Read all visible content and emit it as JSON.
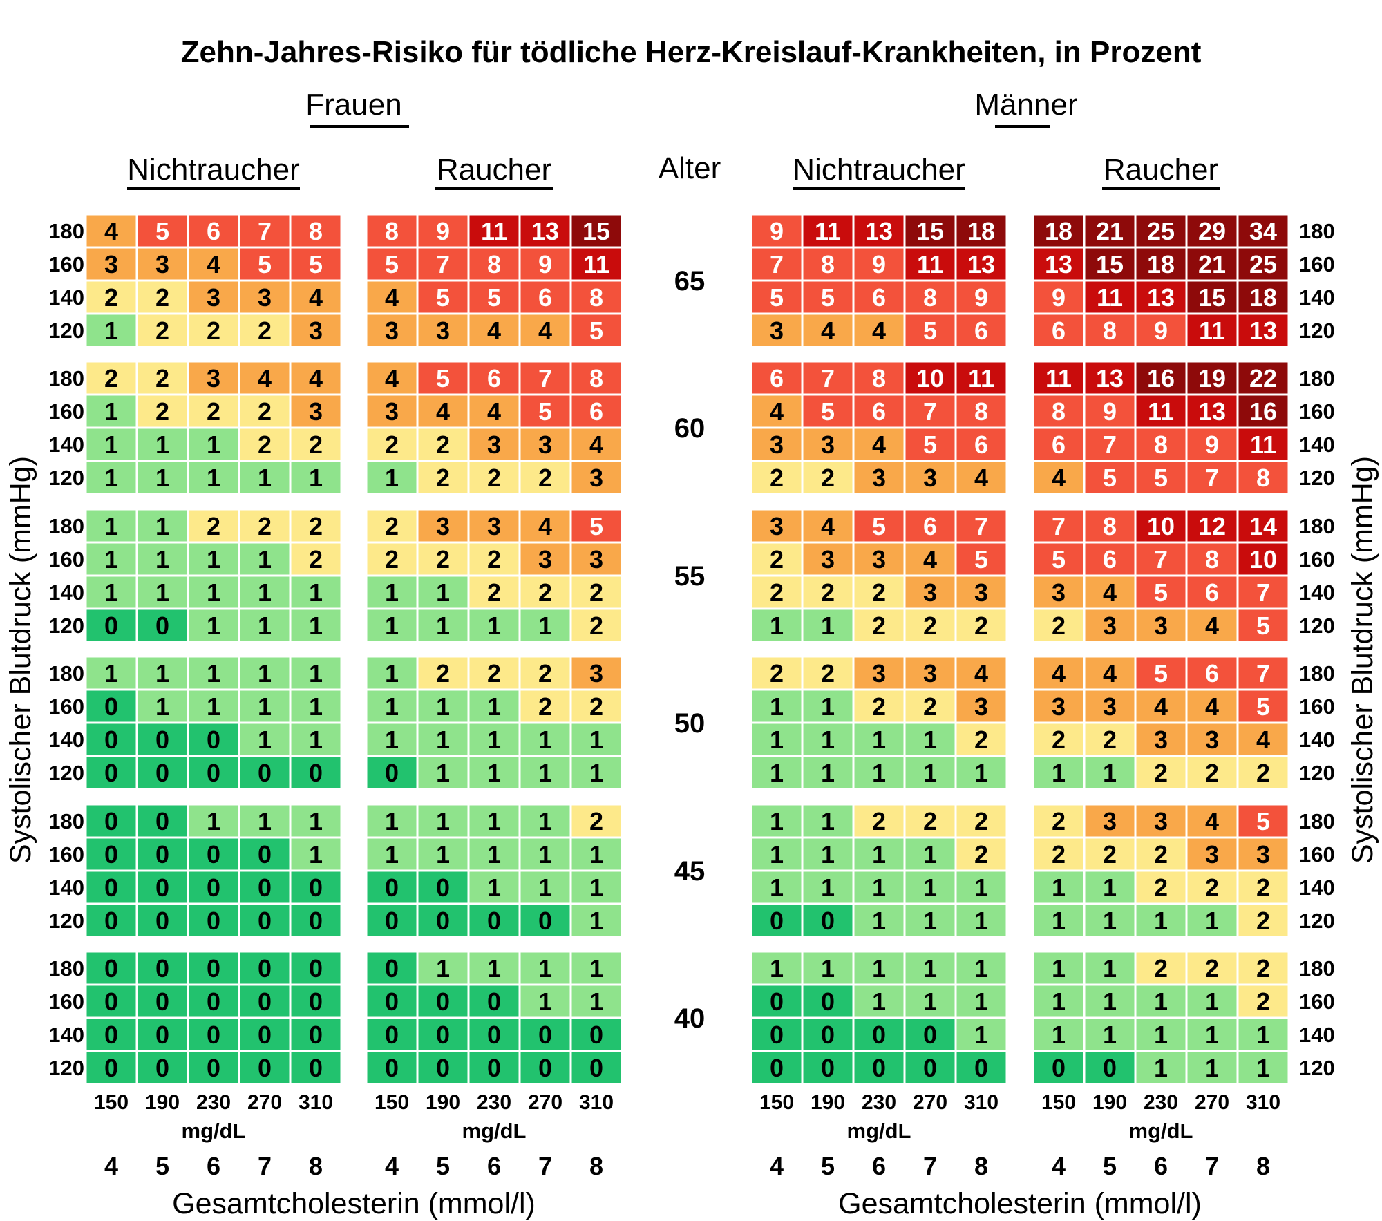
{
  "title": "Zehn-Jahres-Risiko für tödliche Herz-Kreislauf-Krankheiten, in Prozent",
  "colors": {
    "0": "#22c26e",
    "1": "#8fe38c",
    "2": "#fde98a",
    "3": "#f9a84a",
    "4": "#f9a84a",
    "5_9": "#f3523b",
    "10_14": "#c90c0c",
    "15_plus": "#8e0a0a"
  },
  "chart_data": {
    "type": "heatmap",
    "title": "Zehn-Jahres-Risiko für tödliche Herz-Kreislauf-Krankheiten, in Prozent",
    "age_label": "Alter",
    "ages": [
      "65",
      "60",
      "55",
      "50",
      "45",
      "40"
    ],
    "bp_rows": [
      "180",
      "160",
      "140",
      "120"
    ],
    "cholesterol_mgdl": [
      "150",
      "190",
      "230",
      "270",
      "310"
    ],
    "cholesterol_mmol": [
      "4",
      "5",
      "6",
      "7",
      "8"
    ],
    "unit_mgdl": "mg/dL",
    "xlabel": "Gesamtcholesterin (mmol/l)",
    "ylabel": "Systolischer Blutdruck (mmHg)",
    "genders": [
      {
        "name": "Frauen",
        "groups": [
          {
            "name": "Nichtraucher",
            "values": [
              [
                [
                  4,
                  5,
                  6,
                  7,
                  8
                ],
                [
                  3,
                  3,
                  4,
                  5,
                  5
                ],
                [
                  2,
                  2,
                  3,
                  3,
                  4
                ],
                [
                  1,
                  2,
                  2,
                  2,
                  3
                ]
              ],
              [
                [
                  2,
                  2,
                  3,
                  4,
                  4
                ],
                [
                  1,
                  2,
                  2,
                  2,
                  3
                ],
                [
                  1,
                  1,
                  1,
                  2,
                  2
                ],
                [
                  1,
                  1,
                  1,
                  1,
                  1
                ]
              ],
              [
                [
                  1,
                  1,
                  2,
                  2,
                  2
                ],
                [
                  1,
                  1,
                  1,
                  1,
                  2
                ],
                [
                  1,
                  1,
                  1,
                  1,
                  1
                ],
                [
                  0,
                  0,
                  1,
                  1,
                  1
                ]
              ],
              [
                [
                  1,
                  1,
                  1,
                  1,
                  1
                ],
                [
                  0,
                  1,
                  1,
                  1,
                  1
                ],
                [
                  0,
                  0,
                  0,
                  1,
                  1
                ],
                [
                  0,
                  0,
                  0,
                  0,
                  0
                ]
              ],
              [
                [
                  0,
                  0,
                  1,
                  1,
                  1
                ],
                [
                  0,
                  0,
                  0,
                  0,
                  1
                ],
                [
                  0,
                  0,
                  0,
                  0,
                  0
                ],
                [
                  0,
                  0,
                  0,
                  0,
                  0
                ]
              ],
              [
                [
                  0,
                  0,
                  0,
                  0,
                  0
                ],
                [
                  0,
                  0,
                  0,
                  0,
                  0
                ],
                [
                  0,
                  0,
                  0,
                  0,
                  0
                ],
                [
                  0,
                  0,
                  0,
                  0,
                  0
                ]
              ]
            ]
          },
          {
            "name": "Raucher",
            "values": [
              [
                [
                  8,
                  9,
                  11,
                  13,
                  15
                ],
                [
                  5,
                  7,
                  8,
                  9,
                  11
                ],
                [
                  4,
                  5,
                  5,
                  6,
                  8
                ],
                [
                  3,
                  3,
                  4,
                  4,
                  5
                ]
              ],
              [
                [
                  4,
                  5,
                  6,
                  7,
                  8
                ],
                [
                  3,
                  4,
                  4,
                  5,
                  6
                ],
                [
                  2,
                  2,
                  3,
                  3,
                  4
                ],
                [
                  1,
                  2,
                  2,
                  2,
                  3
                ]
              ],
              [
                [
                  2,
                  3,
                  3,
                  4,
                  5
                ],
                [
                  2,
                  2,
                  2,
                  3,
                  3
                ],
                [
                  1,
                  1,
                  2,
                  2,
                  2
                ],
                [
                  1,
                  1,
                  1,
                  1,
                  2
                ]
              ],
              [
                [
                  1,
                  2,
                  2,
                  2,
                  3
                ],
                [
                  1,
                  1,
                  1,
                  2,
                  2
                ],
                [
                  1,
                  1,
                  1,
                  1,
                  1
                ],
                [
                  0,
                  1,
                  1,
                  1,
                  1
                ]
              ],
              [
                [
                  1,
                  1,
                  1,
                  1,
                  2
                ],
                [
                  1,
                  1,
                  1,
                  1,
                  1
                ],
                [
                  0,
                  0,
                  1,
                  1,
                  1
                ],
                [
                  0,
                  0,
                  0,
                  0,
                  1
                ]
              ],
              [
                [
                  0,
                  1,
                  1,
                  1,
                  1
                ],
                [
                  0,
                  0,
                  0,
                  1,
                  1
                ],
                [
                  0,
                  0,
                  0,
                  0,
                  0
                ],
                [
                  0,
                  0,
                  0,
                  0,
                  0
                ]
              ]
            ]
          }
        ]
      },
      {
        "name": "Männer",
        "groups": [
          {
            "name": "Nichtraucher",
            "values": [
              [
                [
                  9,
                  11,
                  13,
                  15,
                  18
                ],
                [
                  7,
                  8,
                  9,
                  11,
                  13
                ],
                [
                  5,
                  5,
                  6,
                  8,
                  9
                ],
                [
                  3,
                  4,
                  4,
                  5,
                  6
                ]
              ],
              [
                [
                  6,
                  7,
                  8,
                  10,
                  11
                ],
                [
                  4,
                  5,
                  6,
                  7,
                  8
                ],
                [
                  3,
                  3,
                  4,
                  5,
                  6
                ],
                [
                  2,
                  2,
                  3,
                  3,
                  4
                ]
              ],
              [
                [
                  3,
                  4,
                  5,
                  6,
                  7
                ],
                [
                  2,
                  3,
                  3,
                  4,
                  5
                ],
                [
                  2,
                  2,
                  2,
                  3,
                  3
                ],
                [
                  1,
                  1,
                  2,
                  2,
                  2
                ]
              ],
              [
                [
                  2,
                  2,
                  3,
                  3,
                  4
                ],
                [
                  1,
                  1,
                  2,
                  2,
                  3
                ],
                [
                  1,
                  1,
                  1,
                  1,
                  2
                ],
                [
                  1,
                  1,
                  1,
                  1,
                  1
                ]
              ],
              [
                [
                  1,
                  1,
                  2,
                  2,
                  2
                ],
                [
                  1,
                  1,
                  1,
                  1,
                  2
                ],
                [
                  1,
                  1,
                  1,
                  1,
                  1
                ],
                [
                  0,
                  0,
                  1,
                  1,
                  1
                ]
              ],
              [
                [
                  1,
                  1,
                  1,
                  1,
                  1
                ],
                [
                  0,
                  0,
                  1,
                  1,
                  1
                ],
                [
                  0,
                  0,
                  0,
                  0,
                  1
                ],
                [
                  0,
                  0,
                  0,
                  0,
                  0
                ]
              ]
            ]
          },
          {
            "name": "Raucher",
            "values": [
              [
                [
                  18,
                  21,
                  25,
                  29,
                  34
                ],
                [
                  13,
                  15,
                  18,
                  21,
                  25
                ],
                [
                  9,
                  11,
                  13,
                  15,
                  18
                ],
                [
                  6,
                  8,
                  9,
                  11,
                  13
                ]
              ],
              [
                [
                  11,
                  13,
                  16,
                  19,
                  22
                ],
                [
                  8,
                  9,
                  11,
                  13,
                  16
                ],
                [
                  6,
                  7,
                  8,
                  9,
                  11
                ],
                [
                  4,
                  5,
                  5,
                  7,
                  8
                ]
              ],
              [
                [
                  7,
                  8,
                  10,
                  12,
                  14
                ],
                [
                  5,
                  6,
                  7,
                  8,
                  10
                ],
                [
                  3,
                  4,
                  5,
                  6,
                  7
                ],
                [
                  2,
                  3,
                  3,
                  4,
                  5
                ]
              ],
              [
                [
                  4,
                  4,
                  5,
                  6,
                  7
                ],
                [
                  3,
                  3,
                  4,
                  4,
                  5
                ],
                [
                  2,
                  2,
                  3,
                  3,
                  4
                ],
                [
                  1,
                  1,
                  2,
                  2,
                  2
                ]
              ],
              [
                [
                  2,
                  3,
                  3,
                  4,
                  5
                ],
                [
                  2,
                  2,
                  2,
                  3,
                  3
                ],
                [
                  1,
                  1,
                  2,
                  2,
                  2
                ],
                [
                  1,
                  1,
                  1,
                  1,
                  2
                ]
              ],
              [
                [
                  1,
                  1,
                  2,
                  2,
                  2
                ],
                [
                  1,
                  1,
                  1,
                  1,
                  2
                ],
                [
                  1,
                  1,
                  1,
                  1,
                  1
                ],
                [
                  0,
                  0,
                  1,
                  1,
                  1
                ]
              ]
            ]
          }
        ]
      }
    ]
  }
}
